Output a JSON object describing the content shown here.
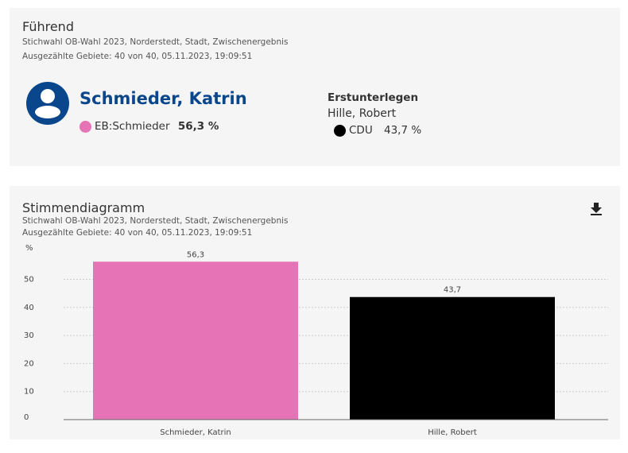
{
  "leading": {
    "title": "Führend",
    "subtitle": "Stichwahl OB-Wahl 2023, Norderstedt, Stadt, Zwischenergebnis",
    "counted": "Ausgezählte Gebiete: 40 von 40, 05.11.2023, 19:09:51",
    "winner": {
      "name": "Schmieder, Katrin",
      "party": "EB:Schmieder",
      "percent": "56,3 %",
      "color": "#e573b5"
    },
    "runner_up_label": "Erstunterlegen",
    "runner_up": {
      "name": "Hille, Robert",
      "party": "CDU",
      "percent": "43,7 %",
      "color": "#000000"
    }
  },
  "diagram": {
    "title": "Stimmendiagramm",
    "subtitle": "Stichwahl OB-Wahl 2023, Norderstedt, Stadt, Zwischenergebnis",
    "counted": "Ausgezählte Gebiete: 40 von 40, 05.11.2023, 19:09:51",
    "download_icon": "download-icon"
  },
  "chart_data": {
    "type": "bar",
    "ylabel": "%",
    "categories": [
      "Schmieder, Katrin",
      "Hille, Robert"
    ],
    "values": [
      56.3,
      43.7
    ],
    "value_labels": [
      "56,3",
      "43,7"
    ],
    "colors": [
      "#e573b5",
      "#000000"
    ],
    "yticks": [
      0,
      10,
      20,
      30,
      40,
      50
    ],
    "ylim": [
      0,
      56.3
    ],
    "grid": true
  }
}
